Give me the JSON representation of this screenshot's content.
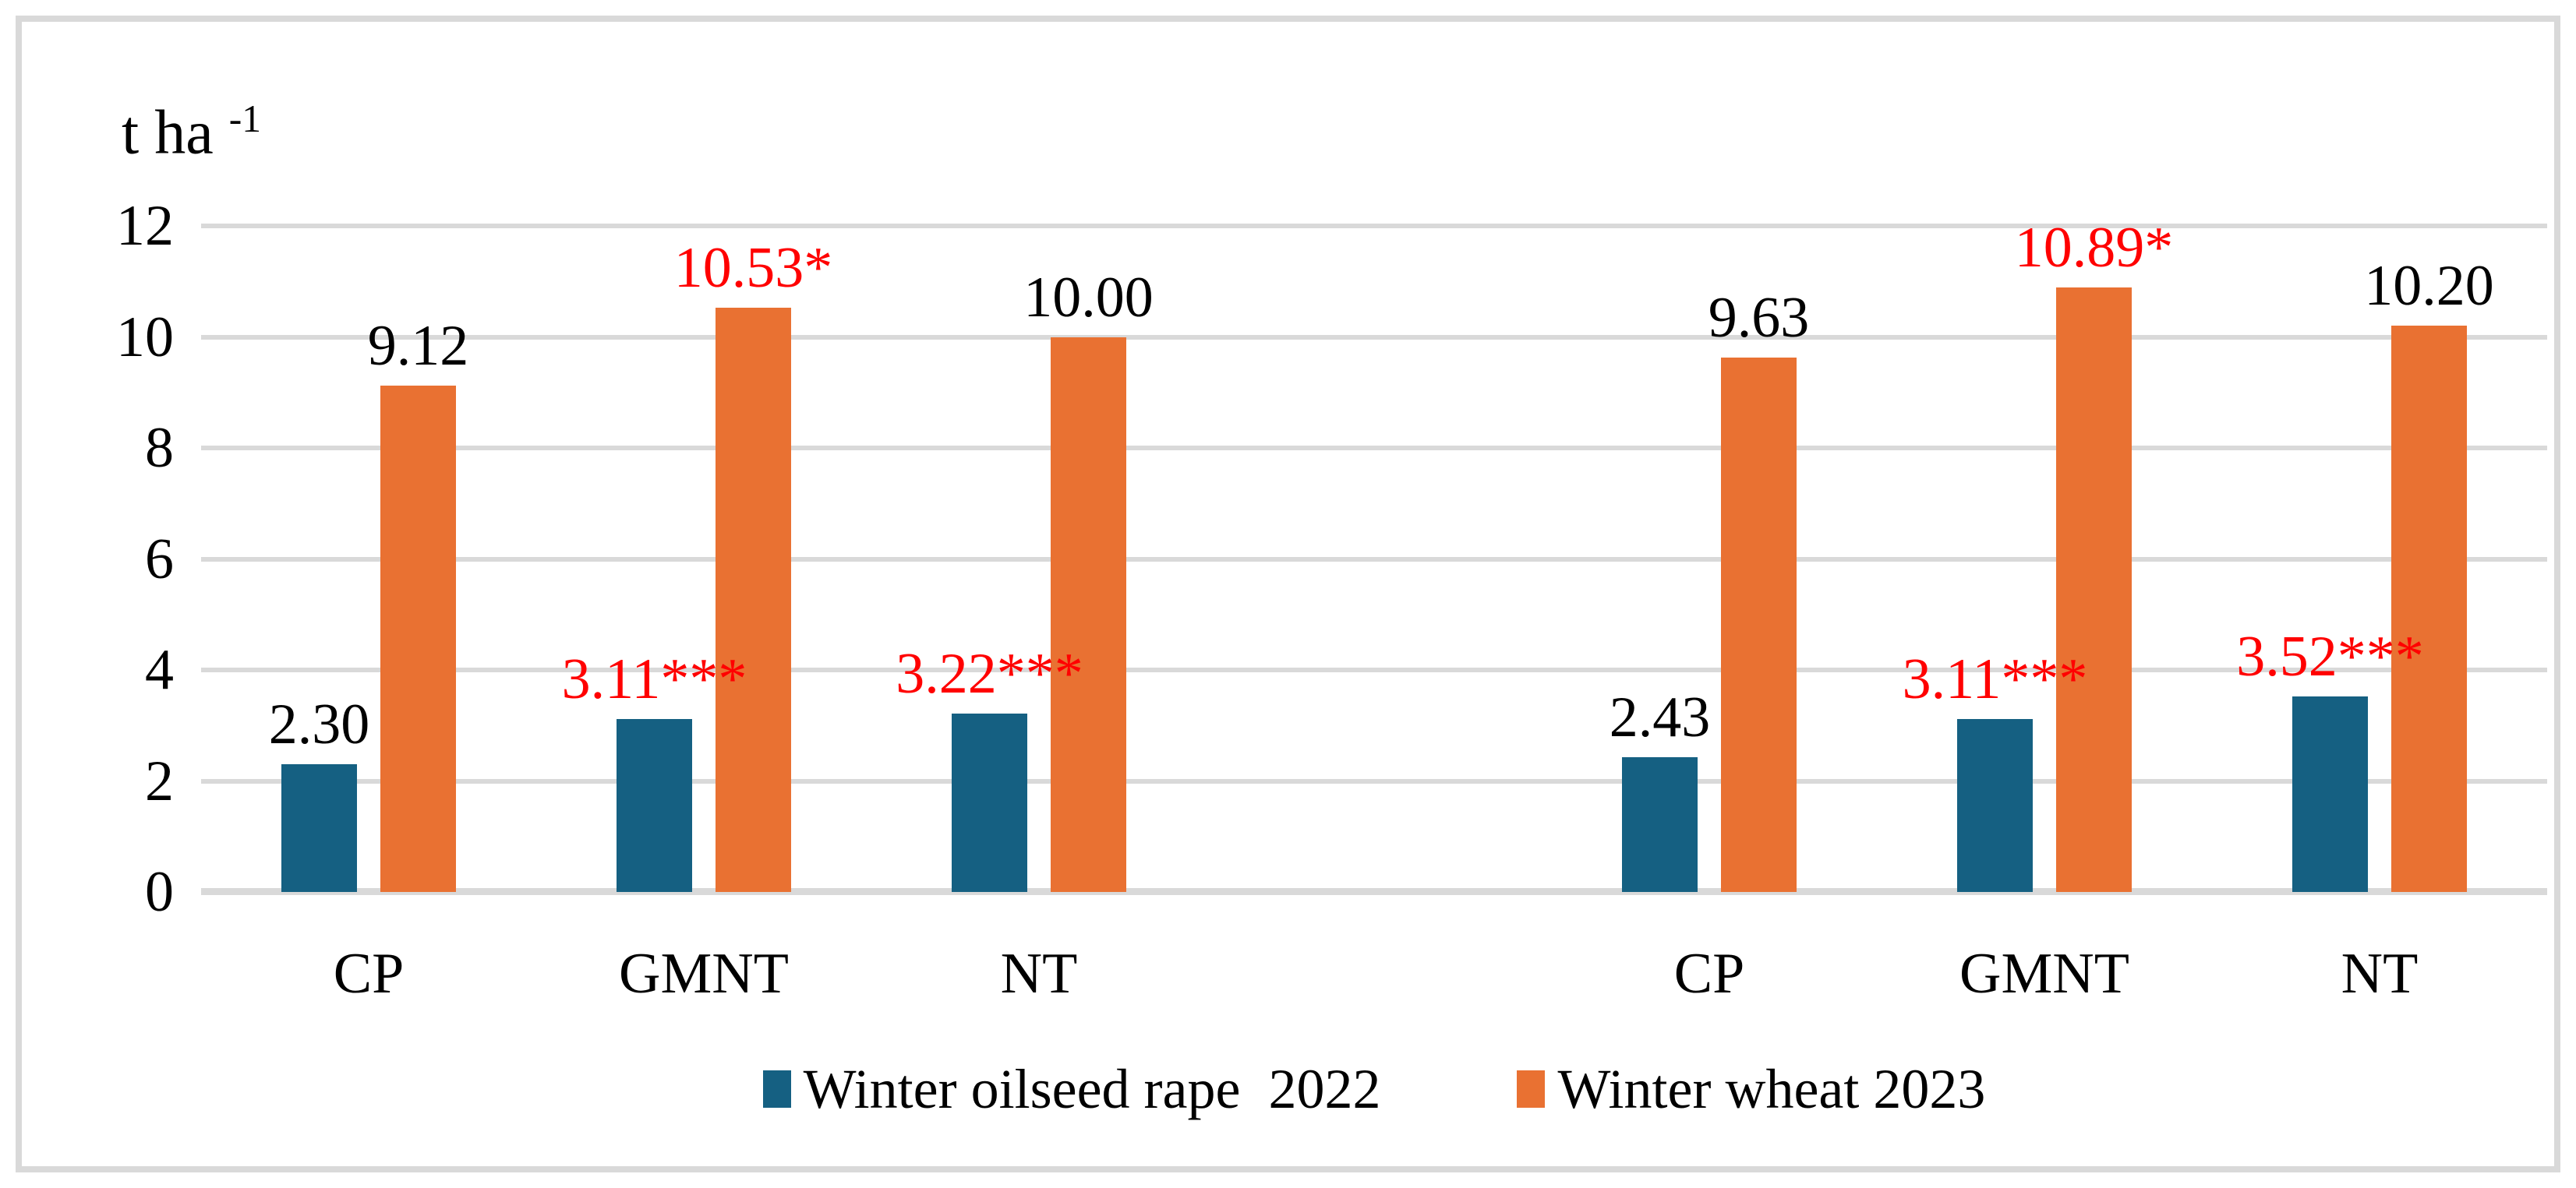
{
  "chart_data": {
    "type": "bar",
    "unit_label_base": "t ha ",
    "unit_label_superscript": "-1",
    "ylim": [
      0,
      12
    ],
    "yticks": [
      0,
      2,
      4,
      6,
      8,
      10,
      12
    ],
    "grid": true,
    "legend_position": "bottom",
    "colors": {
      "oilseed_blue": "#156082",
      "wheat_orange": "#E97132",
      "significant_label_red": "#FF0000",
      "label_black": "#000000",
      "gridline_gray": "#D9D9D9",
      "frame_border_gray": "#D9D9D9"
    },
    "series": [
      {
        "key": "oilseed",
        "name": "Winter oilseed rape  2022",
        "color": "#156082"
      },
      {
        "key": "wheat",
        "name": "Winter wheat 2023",
        "color": "#E97132"
      }
    ],
    "clusters": [
      {
        "group": 1,
        "category": "CP",
        "oilseed": {
          "value": 2.3,
          "label": "2.30",
          "red": false
        },
        "wheat": {
          "value": 9.12,
          "label": "9.12",
          "red": false
        }
      },
      {
        "group": 1,
        "category": "GMNT",
        "oilseed": {
          "value": 3.11,
          "label": "3.11***",
          "red": true
        },
        "wheat": {
          "value": 10.53,
          "label": "10.53*",
          "red": true
        }
      },
      {
        "group": 1,
        "category": "NT",
        "oilseed": {
          "value": 3.22,
          "label": "3.22***",
          "red": true
        },
        "wheat": {
          "value": 10.0,
          "label": "10.00",
          "red": false
        }
      },
      {
        "group": 2,
        "category": "CP",
        "oilseed": {
          "value": 2.43,
          "label": "2.43",
          "red": false
        },
        "wheat": {
          "value": 9.63,
          "label": "9.63",
          "red": false
        }
      },
      {
        "group": 2,
        "category": "GMNT",
        "oilseed": {
          "value": 3.11,
          "label": "3.11***",
          "red": true
        },
        "wheat": {
          "value": 10.89,
          "label": "10.89*",
          "red": true
        }
      },
      {
        "group": 2,
        "category": "NT",
        "oilseed": {
          "value": 3.52,
          "label": "3.52***",
          "red": true
        },
        "wheat": {
          "value": 10.2,
          "label": "10.20",
          "red": false
        }
      }
    ]
  }
}
